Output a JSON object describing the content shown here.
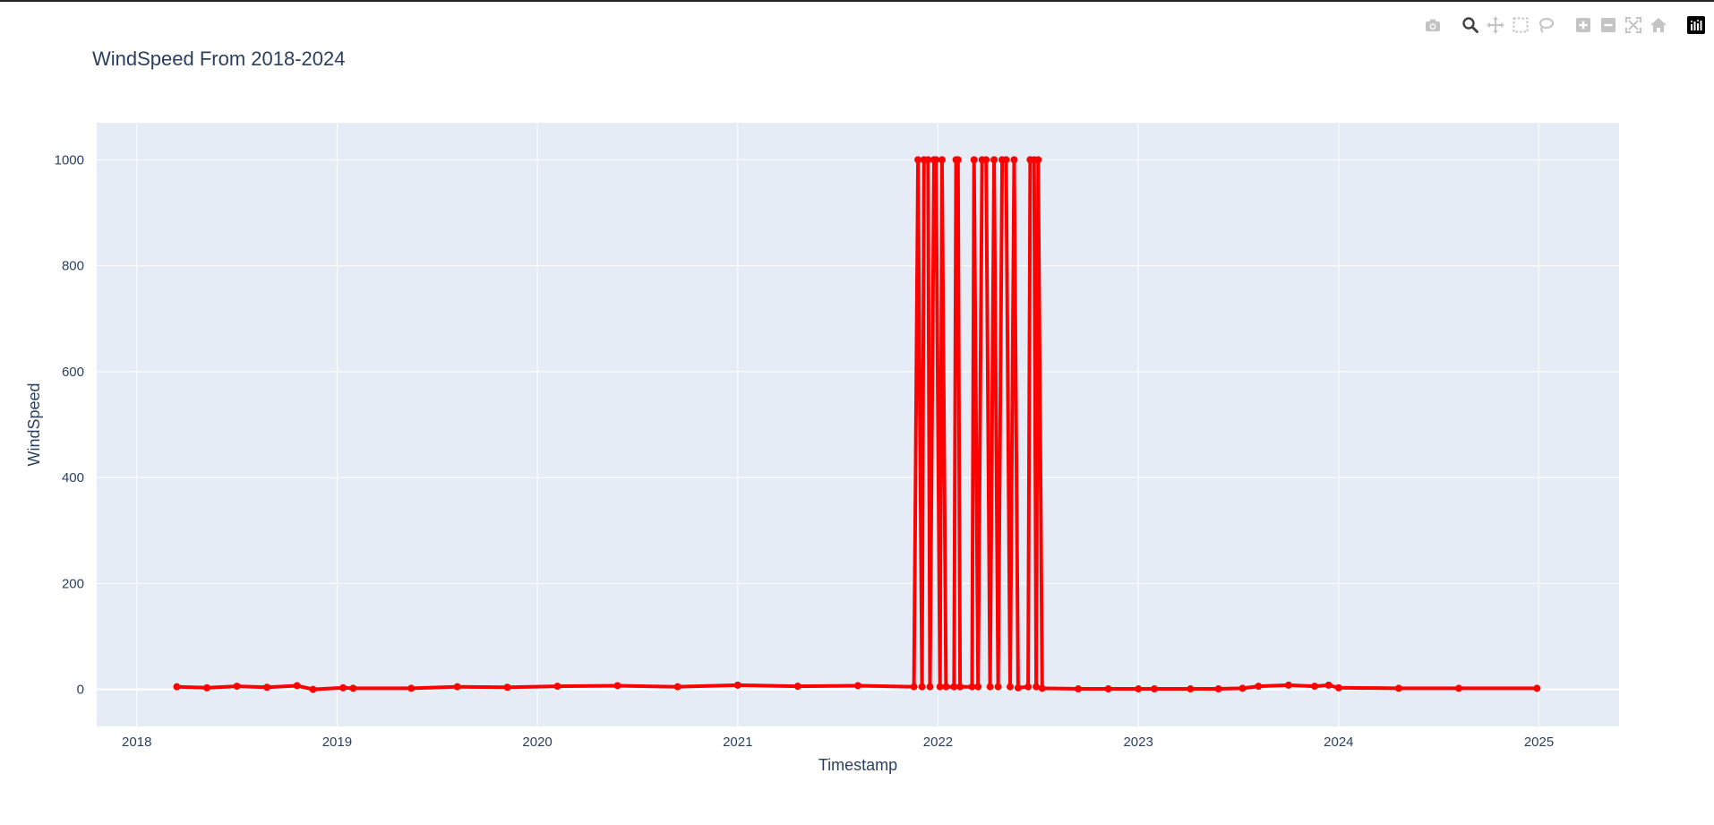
{
  "title": "WindSpeed From 2018-2024",
  "modebar": {
    "buttons": [
      {
        "name": "camera-icon"
      },
      {
        "name": "zoom-icon"
      },
      {
        "name": "pan-icon"
      },
      {
        "name": "box-select-icon"
      },
      {
        "name": "lasso-select-icon"
      },
      {
        "name": "zoom-in-icon"
      },
      {
        "name": "zoom-out-icon"
      },
      {
        "name": "autoscale-icon"
      },
      {
        "name": "reset-axes-icon"
      },
      {
        "name": "plotly-logo-icon"
      }
    ]
  },
  "colors": {
    "line": "#ff0000",
    "plot_bg": "#e5ecf6",
    "grid": "#ffffff",
    "text": "#2a3f5f"
  },
  "chart_data": {
    "type": "line",
    "mode": "lines+markers",
    "title": "WindSpeed From 2018-2024",
    "xlabel": "Timestamp",
    "ylabel": "WindSpeed",
    "xlim": [
      2017.8,
      2025.4
    ],
    "ylim": [
      -70,
      1070
    ],
    "xticks": [
      2018,
      2019,
      2020,
      2021,
      2022,
      2023,
      2024,
      2025
    ],
    "xtick_labels": [
      "2018",
      "2019",
      "2020",
      "2021",
      "2022",
      "2023",
      "2024",
      "2025"
    ],
    "yticks": [
      0,
      200,
      400,
      600,
      800,
      1000
    ],
    "ytick_labels": [
      "0",
      "200",
      "400",
      "600",
      "800",
      "1000"
    ],
    "grid": true,
    "series": [
      {
        "x": [
          2018.2,
          2018.35,
          2018.5,
          2018.65,
          2018.8,
          2018.88,
          2019.03,
          2019.08,
          2019.37,
          2019.6,
          2019.85,
          2020.1,
          2020.4,
          2020.7,
          2021.0,
          2021.3,
          2021.6,
          2021.88,
          2021.9,
          2021.92,
          2021.93,
          2021.95,
          2021.96,
          2021.98,
          2021.99,
          2022.01,
          2022.02,
          2022.04,
          2022.08,
          2022.09,
          2022.1,
          2022.11,
          2022.17,
          2022.18,
          2022.2,
          2022.22,
          2022.24,
          2022.26,
          2022.28,
          2022.3,
          2022.32,
          2022.34,
          2022.36,
          2022.38,
          2022.4,
          2022.45,
          2022.46,
          2022.48,
          2022.49,
          2022.5,
          2022.52,
          2022.7,
          2022.85,
          2023.0,
          2023.08,
          2023.26,
          2023.4,
          2023.52,
          2023.6,
          2023.75,
          2023.88,
          2023.95,
          2024.0,
          2024.3,
          2024.6,
          2024.99
        ],
        "y": [
          5,
          3,
          6,
          4,
          7,
          0,
          3,
          2,
          2,
          5,
          4,
          6,
          7,
          5,
          8,
          6,
          7,
          5,
          1000,
          5,
          1000,
          1000,
          5,
          1000,
          1000,
          5,
          1000,
          5,
          5,
          1000,
          1000,
          5,
          5,
          1000,
          5,
          1000,
          1000,
          5,
          1000,
          5,
          1000,
          1000,
          5,
          1000,
          3,
          5,
          1000,
          1000,
          5,
          1000,
          2,
          1,
          1,
          1,
          1,
          1,
          1,
          2,
          6,
          8,
          6,
          8,
          3,
          2,
          2,
          2
        ]
      }
    ]
  }
}
